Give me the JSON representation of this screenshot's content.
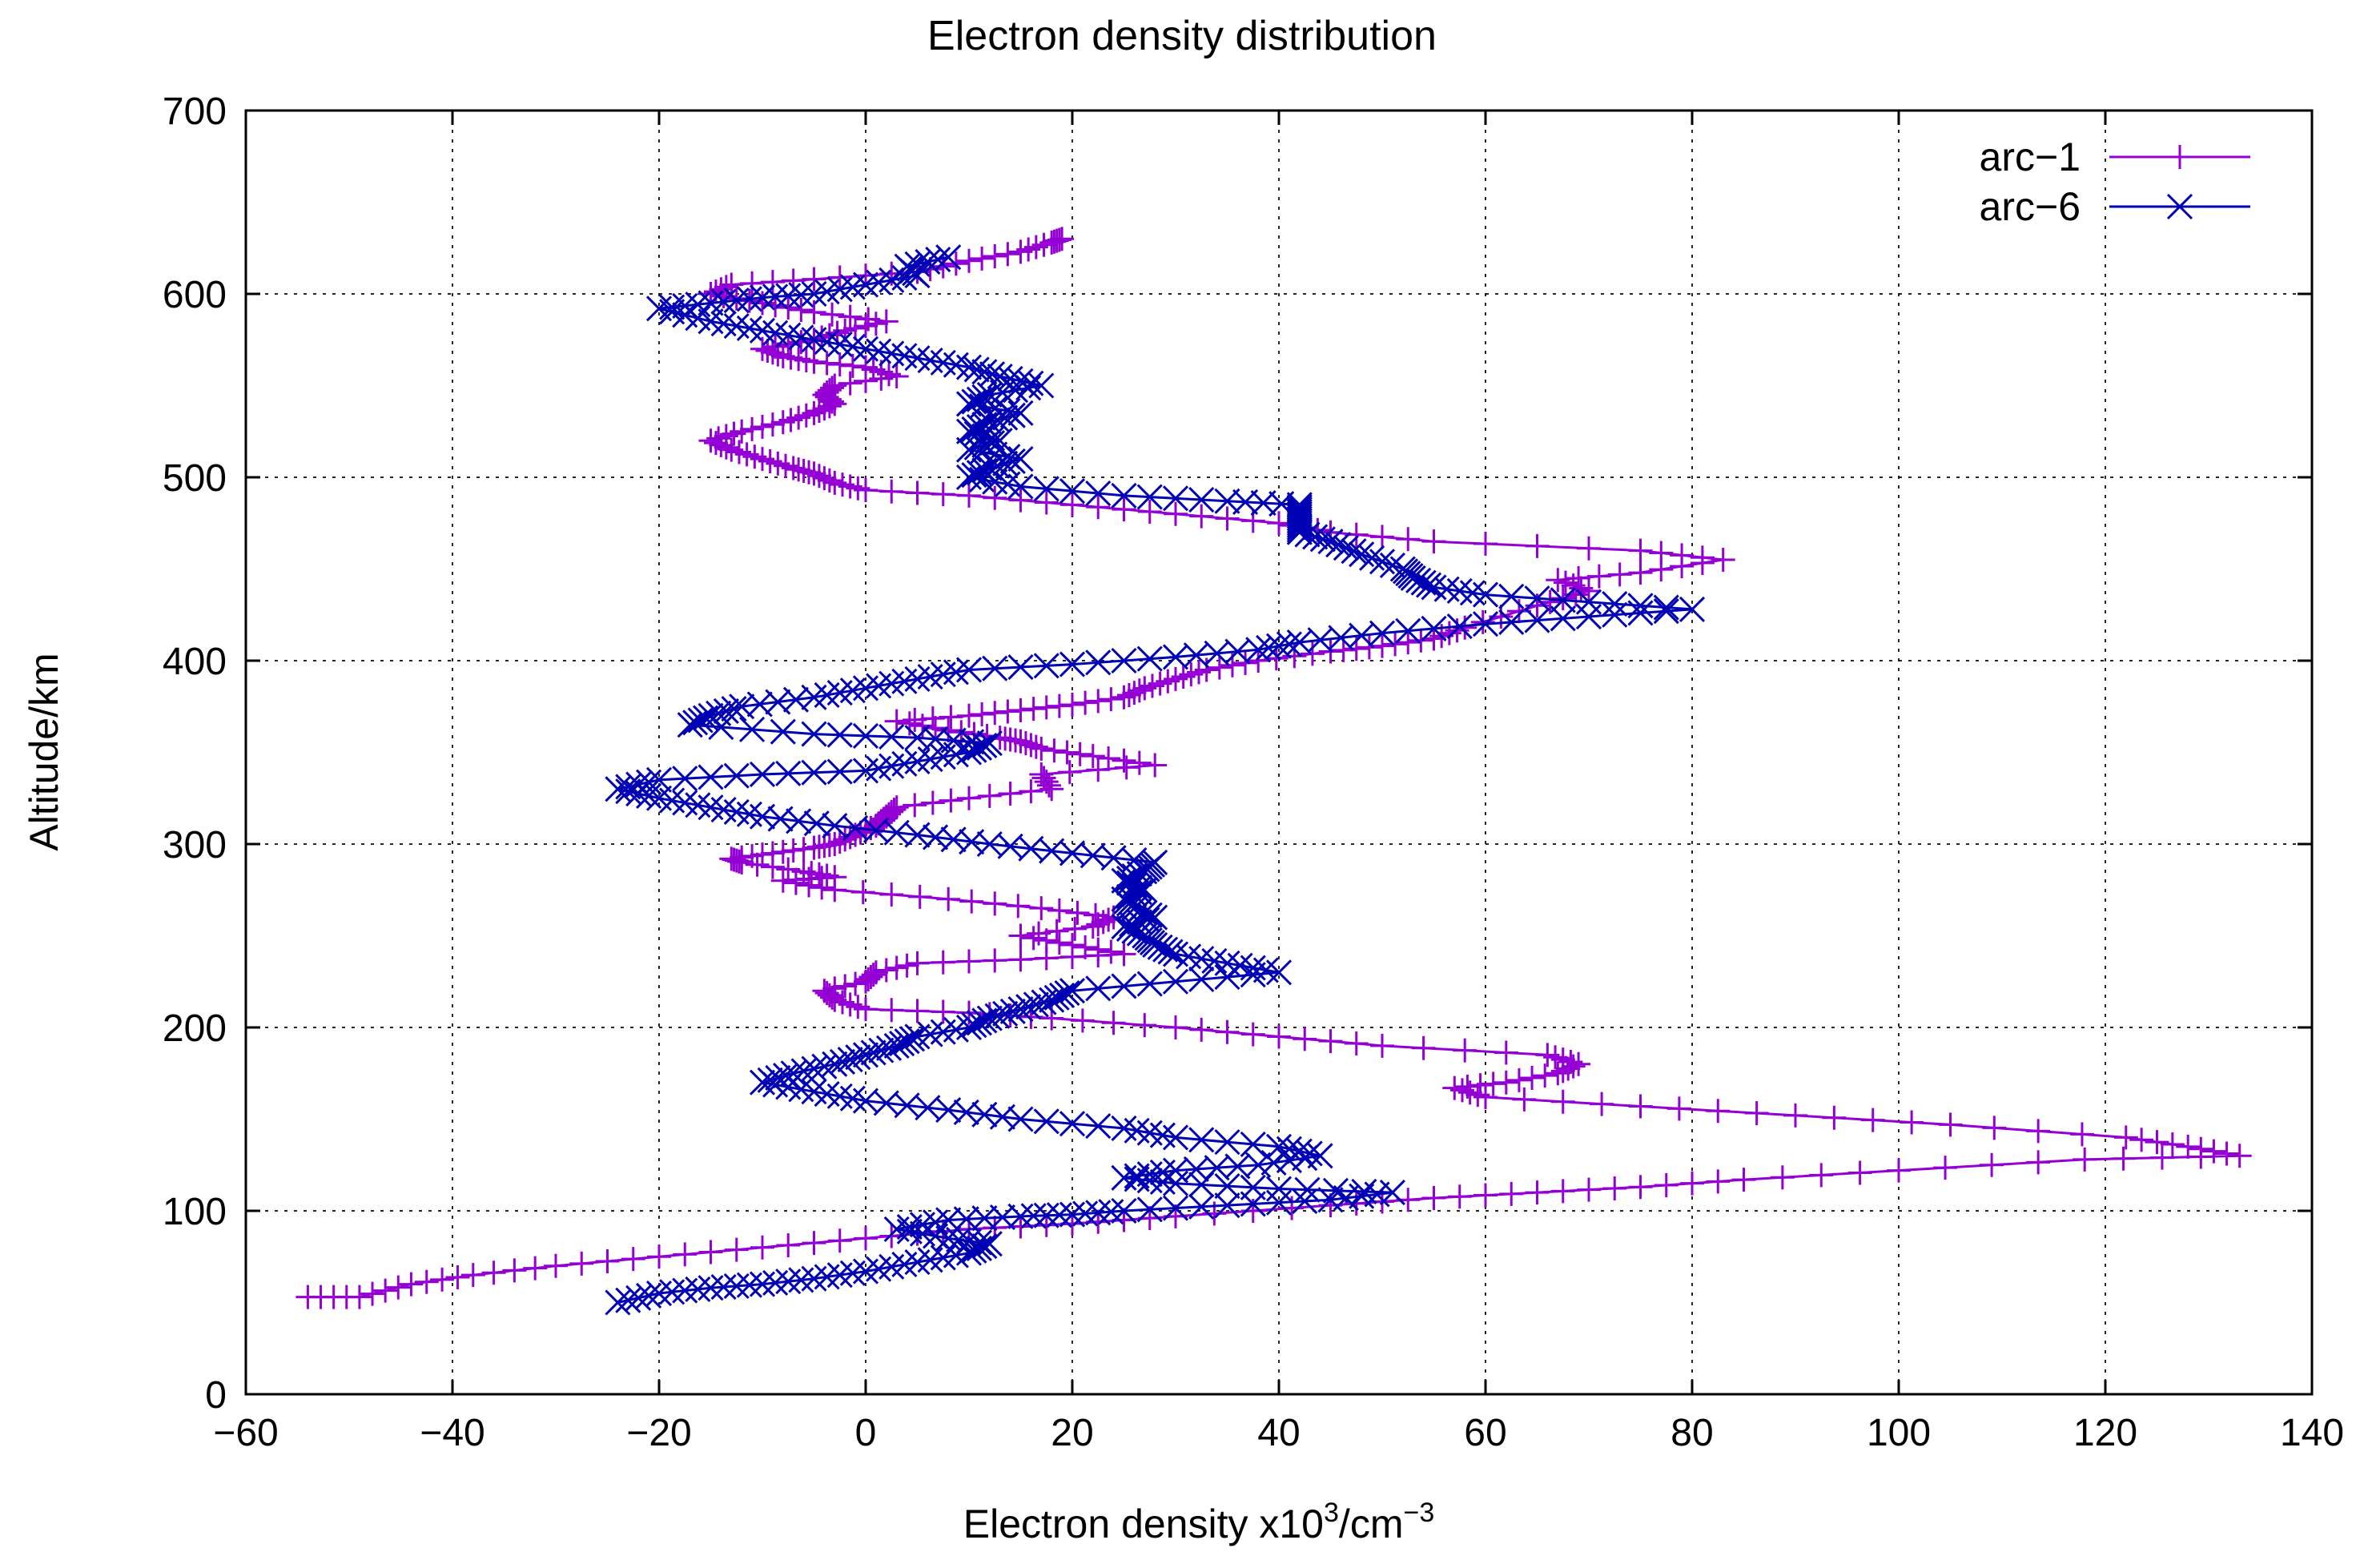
{
  "chart_data": {
    "type": "line",
    "title": "Electron density distribution",
    "xlabel_prefix": "Electron density x10",
    "xlabel_exp1": "3",
    "xlabel_mid": "/cm",
    "xlabel_exp2": "−3",
    "ylabel": "Altitude/km",
    "xlim": [
      -60,
      140
    ],
    "ylim": [
      0,
      700
    ],
    "x_ticks": [
      -60,
      -40,
      -20,
      0,
      20,
      40,
      60,
      80,
      100,
      120,
      140
    ],
    "x_tick_labels": [
      "−60",
      "−40",
      "−20",
      "0",
      "20",
      "40",
      "60",
      "80",
      "100",
      "120",
      "140"
    ],
    "y_ticks": [
      0,
      100,
      200,
      300,
      400,
      500,
      600,
      700
    ],
    "y_tick_labels": [
      "0",
      "100",
      "200",
      "300",
      "400",
      "500",
      "600",
      "700"
    ],
    "grid": true,
    "legend_position": "top-right",
    "series": [
      {
        "name": "arc−1",
        "marker": "plus",
        "color": "#9400d3",
        "points": [
          [
            -54,
            53
          ],
          [
            -49,
            53
          ],
          [
            -44,
            60
          ],
          [
            -38,
            65
          ],
          [
            -30,
            70
          ],
          [
            -20,
            75
          ],
          [
            -10,
            80
          ],
          [
            0,
            85
          ],
          [
            10,
            90
          ],
          [
            20,
            93
          ],
          [
            30,
            97
          ],
          [
            45,
            103
          ],
          [
            55,
            107
          ],
          [
            65,
            110
          ],
          [
            75,
            113
          ],
          [
            85,
            117
          ],
          [
            100,
            122
          ],
          [
            118,
            128
          ],
          [
            133,
            130
          ],
          [
            128,
            135
          ],
          [
            122,
            140
          ],
          [
            105,
            147
          ],
          [
            90,
            152
          ],
          [
            75,
            157
          ],
          [
            60,
            162
          ],
          [
            57,
            167
          ],
          [
            62,
            170
          ],
          [
            67,
            175
          ],
          [
            69,
            180
          ],
          [
            66,
            185
          ],
          [
            50,
            190
          ],
          [
            40,
            195
          ],
          [
            30,
            200
          ],
          [
            18,
            205
          ],
          [
            10,
            208
          ],
          [
            0,
            210
          ],
          [
            -3,
            215
          ],
          [
            -4,
            220
          ],
          [
            0,
            225
          ],
          [
            1,
            230
          ],
          [
            5,
            235
          ],
          [
            15,
            237
          ],
          [
            25,
            240
          ],
          [
            20,
            245
          ],
          [
            15,
            250
          ],
          [
            22,
            255
          ],
          [
            24,
            260
          ],
          [
            17,
            265
          ],
          [
            8,
            270
          ],
          [
            -3,
            275
          ],
          [
            -8,
            280
          ],
          [
            -3,
            282
          ],
          [
            -6,
            285
          ],
          [
            -12,
            290
          ],
          [
            -13,
            292
          ],
          [
            -9,
            295
          ],
          [
            -5,
            298
          ],
          [
            -3,
            300
          ],
          [
            -1,
            305
          ],
          [
            1,
            310
          ],
          [
            2,
            315
          ],
          [
            3,
            320
          ],
          [
            10,
            325
          ],
          [
            18,
            330
          ],
          [
            17,
            338
          ],
          [
            28,
            343
          ],
          [
            22,
            348
          ],
          [
            17,
            352
          ],
          [
            15,
            356
          ],
          [
            13,
            358
          ],
          [
            8,
            362
          ],
          [
            3,
            367
          ],
          [
            10,
            370
          ],
          [
            15,
            373
          ],
          [
            20,
            376
          ],
          [
            25,
            380
          ],
          [
            27,
            385
          ],
          [
            30,
            390
          ],
          [
            33,
            395
          ],
          [
            38,
            400
          ],
          [
            45,
            405
          ],
          [
            50,
            408
          ],
          [
            55,
            412
          ],
          [
            58,
            418
          ],
          [
            65,
            430
          ],
          [
            70,
            438
          ],
          [
            67,
            444
          ],
          [
            75,
            448
          ],
          [
            83,
            455
          ],
          [
            75,
            460
          ],
          [
            55,
            465
          ],
          [
            45,
            470
          ],
          [
            40,
            475
          ],
          [
            30,
            480
          ],
          [
            20,
            485
          ],
          [
            10,
            490
          ],
          [
            0,
            493
          ],
          [
            -3,
            497
          ],
          [
            -5,
            502
          ],
          [
            -7,
            505
          ],
          [
            -10,
            510
          ],
          [
            -13,
            515
          ],
          [
            -15,
            520
          ],
          [
            -12,
            525
          ],
          [
            -8,
            530
          ],
          [
            -5,
            535
          ],
          [
            -3,
            540
          ],
          [
            -4,
            545
          ],
          [
            -3,
            550
          ],
          [
            3,
            555
          ],
          [
            0,
            560
          ],
          [
            -5,
            563
          ],
          [
            -8,
            566
          ],
          [
            -10,
            570
          ],
          [
            -5,
            575
          ],
          [
            -2,
            580
          ],
          [
            2,
            585
          ],
          [
            -5,
            590
          ],
          [
            -10,
            595
          ],
          [
            -15,
            600
          ],
          [
            -13,
            605
          ],
          [
            -5,
            608
          ],
          [
            5,
            612
          ],
          [
            10,
            618
          ],
          [
            15,
            623
          ],
          [
            18,
            628
          ],
          [
            19,
            630
          ]
        ]
      },
      {
        "name": "arc−6",
        "marker": "cross",
        "color": "#0000b4",
        "points": [
          [
            -24,
            50
          ],
          [
            -20,
            55
          ],
          [
            -15,
            58
          ],
          [
            -10,
            60
          ],
          [
            -5,
            63
          ],
          [
            0,
            67
          ],
          [
            5,
            72
          ],
          [
            10,
            77
          ],
          [
            12,
            82
          ],
          [
            8,
            85
          ],
          [
            3,
            90
          ],
          [
            8,
            95
          ],
          [
            15,
            97
          ],
          [
            20,
            98
          ],
          [
            25,
            100
          ],
          [
            35,
            103
          ],
          [
            45,
            106
          ],
          [
            51,
            110
          ],
          [
            40,
            112
          ],
          [
            30,
            115
          ],
          [
            25,
            118
          ],
          [
            30,
            122
          ],
          [
            38,
            125
          ],
          [
            44,
            130
          ],
          [
            40,
            135
          ],
          [
            30,
            140
          ],
          [
            25,
            145
          ],
          [
            15,
            150
          ],
          [
            8,
            155
          ],
          [
            0,
            160
          ],
          [
            -5,
            165
          ],
          [
            -10,
            170
          ],
          [
            -7,
            175
          ],
          [
            -3,
            180
          ],
          [
            0,
            185
          ],
          [
            3,
            190
          ],
          [
            5,
            195
          ],
          [
            10,
            200
          ],
          [
            12,
            205
          ],
          [
            15,
            210
          ],
          [
            18,
            215
          ],
          [
            20,
            220
          ],
          [
            30,
            225
          ],
          [
            40,
            230
          ],
          [
            35,
            235
          ],
          [
            30,
            240
          ],
          [
            28,
            245
          ],
          [
            27,
            250
          ],
          [
            25,
            255
          ],
          [
            28,
            260
          ],
          [
            26,
            265
          ],
          [
            25,
            270
          ],
          [
            27,
            275
          ],
          [
            25,
            280
          ],
          [
            27,
            285
          ],
          [
            28,
            290
          ],
          [
            20,
            295
          ],
          [
            12,
            300
          ],
          [
            5,
            305
          ],
          [
            -3,
            310
          ],
          [
            -10,
            315
          ],
          [
            -15,
            320
          ],
          [
            -20,
            325
          ],
          [
            -24,
            330
          ],
          [
            -20,
            335
          ],
          [
            -10,
            338
          ],
          [
            0,
            340
          ],
          [
            5,
            345
          ],
          [
            10,
            350
          ],
          [
            12,
            355
          ],
          [
            5,
            358
          ],
          [
            -5,
            360
          ],
          [
            -17,
            365
          ],
          [
            -15,
            370
          ],
          [
            -12,
            375
          ],
          [
            -5,
            380
          ],
          [
            0,
            385
          ],
          [
            5,
            390
          ],
          [
            10,
            395
          ],
          [
            20,
            398
          ],
          [
            30,
            402
          ],
          [
            38,
            406
          ],
          [
            42,
            410
          ],
          [
            50,
            415
          ],
          [
            60,
            420
          ],
          [
            70,
            424
          ],
          [
            80,
            428
          ],
          [
            70,
            432
          ],
          [
            60,
            436
          ],
          [
            55,
            440
          ],
          [
            53,
            445
          ],
          [
            52,
            450
          ],
          [
            48,
            458
          ],
          [
            45,
            465
          ],
          [
            42,
            470
          ],
          [
            42,
            475
          ],
          [
            42,
            480
          ],
          [
            42,
            485
          ],
          [
            35,
            487
          ],
          [
            25,
            490
          ],
          [
            15,
            495
          ],
          [
            10,
            500
          ],
          [
            12,
            505
          ],
          [
            15,
            510
          ],
          [
            10,
            515
          ],
          [
            13,
            520
          ],
          [
            10,
            525
          ],
          [
            12,
            530
          ],
          [
            15,
            535
          ],
          [
            10,
            540
          ],
          [
            12,
            545
          ],
          [
            17,
            550
          ],
          [
            13,
            555
          ],
          [
            10,
            560
          ],
          [
            5,
            565
          ],
          [
            0,
            570
          ],
          [
            -5,
            575
          ],
          [
            -10,
            580
          ],
          [
            -15,
            585
          ],
          [
            -20,
            592
          ],
          [
            -15,
            595
          ],
          [
            -10,
            598
          ],
          [
            -5,
            600
          ],
          [
            0,
            605
          ],
          [
            5,
            610
          ],
          [
            4,
            615
          ],
          [
            8,
            620
          ]
        ]
      }
    ]
  }
}
